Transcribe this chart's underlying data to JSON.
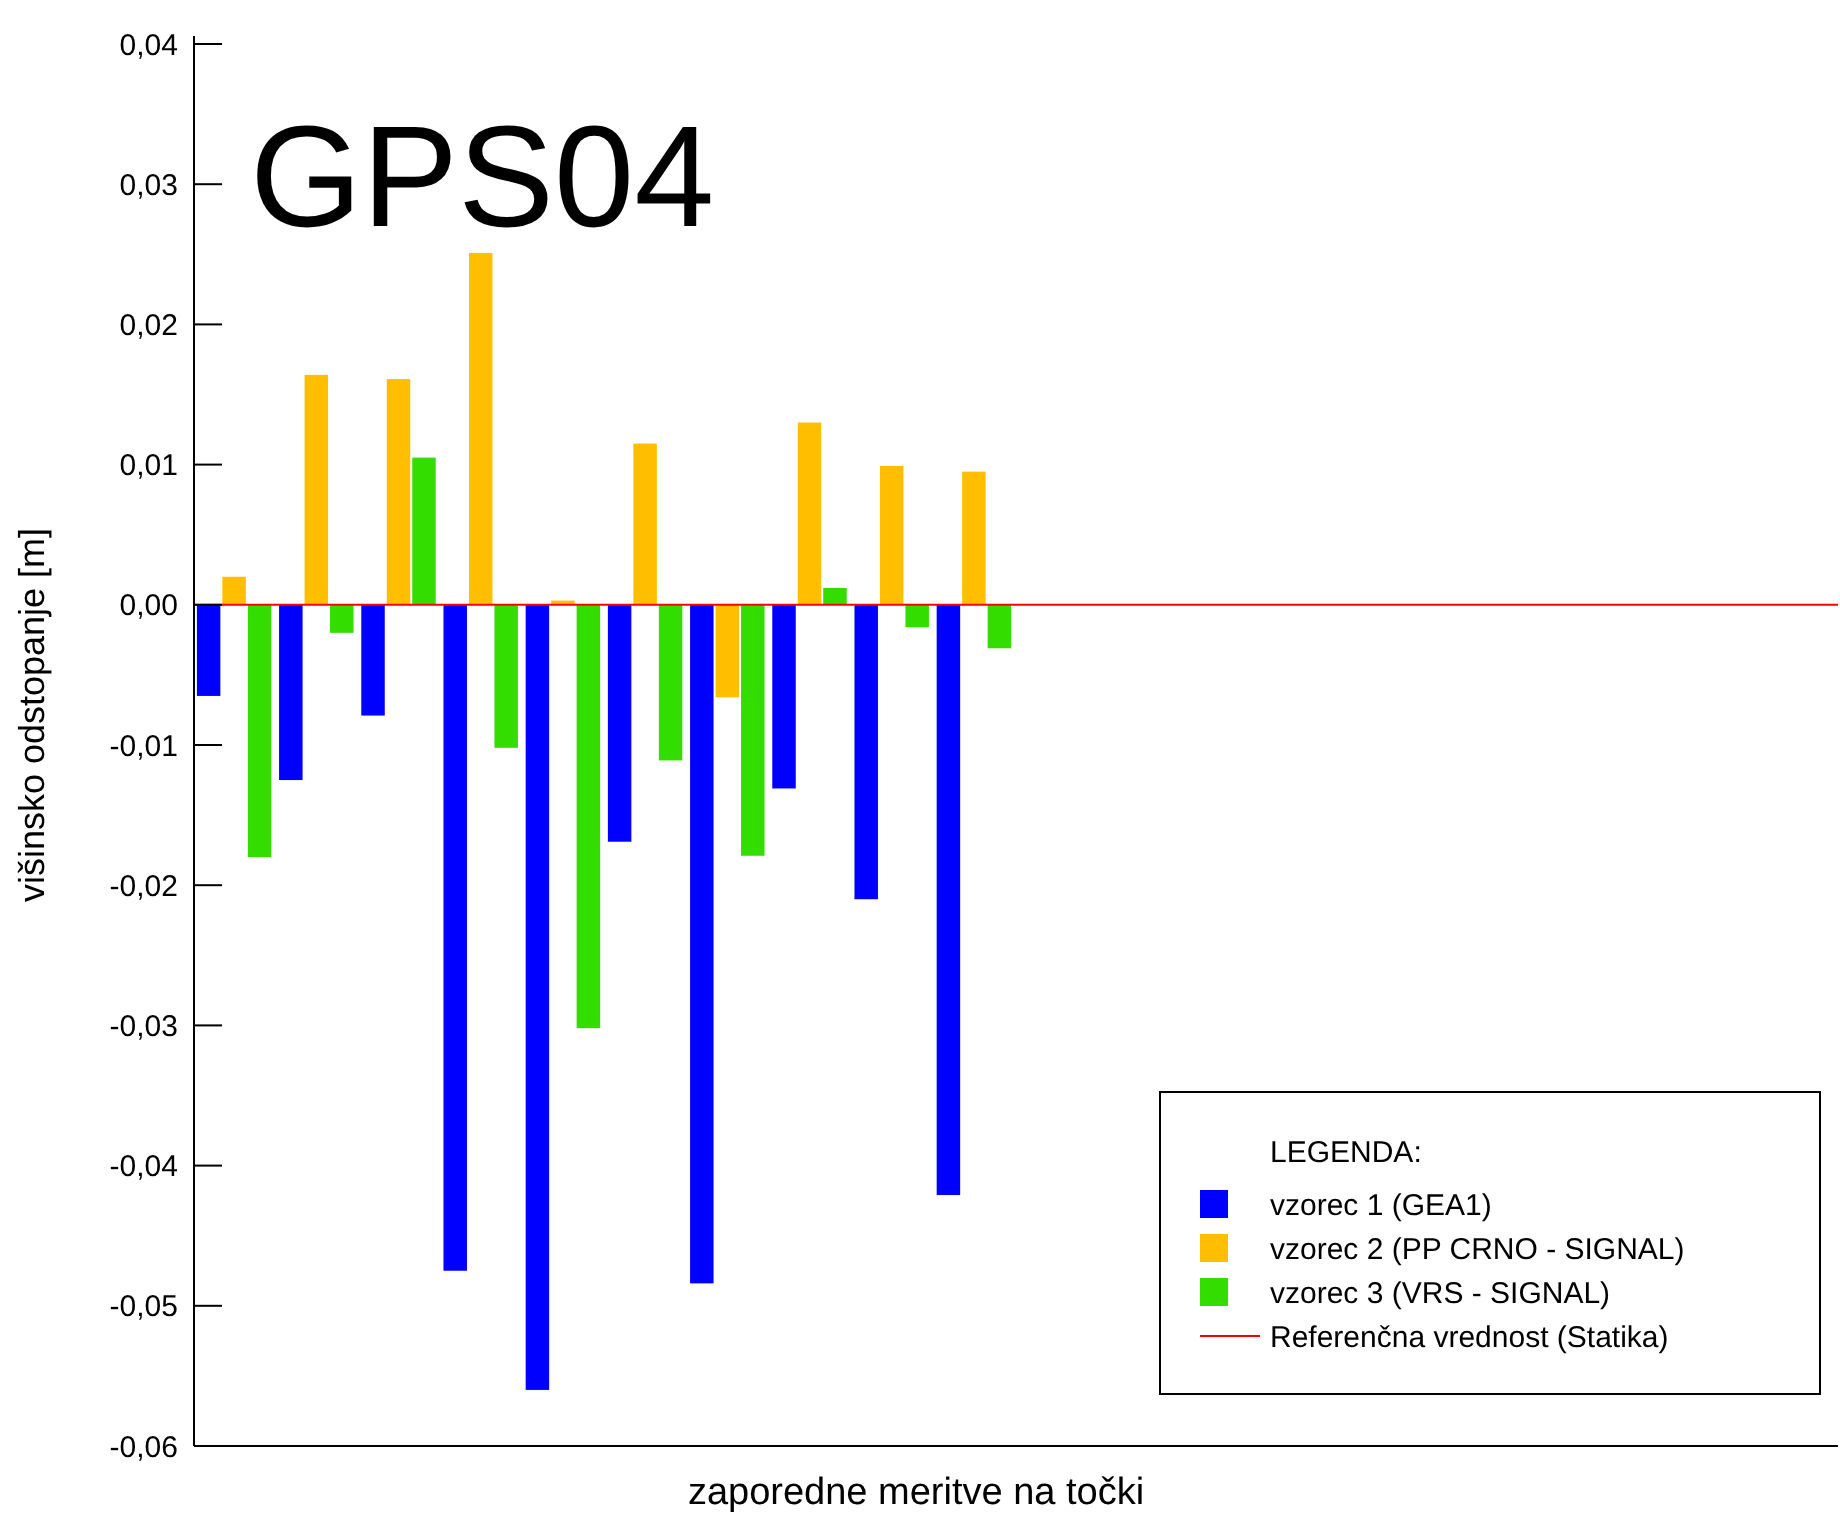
{
  "chart_data": {
    "type": "bar",
    "title": "GPS04",
    "xlabel": "zaporedne meritve na točki",
    "ylabel": "višinsko odstopanje [m]",
    "legend_title": "LEGENDA:",
    "legend": "bottom right",
    "grid": false,
    "categories": [
      null,
      null,
      null,
      null,
      null,
      null,
      null,
      null,
      null,
      null,
      null,
      null,
      null,
      null,
      null,
      null,
      null,
      null,
      null,
      null
    ],
    "series": [
      {
        "name": "vzorec 1 (GEA1)",
        "color": "#0000ff",
        "values": [
          -0.0065,
          -0.0125,
          -0.0079,
          -0.0475,
          -0.056,
          -0.0169,
          -0.0484,
          -0.0131,
          -0.021,
          -0.0421,
          null,
          null,
          null,
          null,
          null,
          null,
          null,
          null,
          null,
          null
        ]
      },
      {
        "name": "vzorec 2 (PP CRNO - SIGNAL)",
        "color": "#ffbf00",
        "values": [
          0.002,
          0.0164,
          0.0161,
          0.0251,
          0.0003,
          0.0115,
          -0.0066,
          0.013,
          0.0099,
          0.0095,
          null,
          null,
          null,
          null,
          null,
          null,
          null,
          null,
          null,
          null
        ]
      },
      {
        "name": "vzorec 3 (VRS - SIGNAL)",
        "color": "#33dd00",
        "values": [
          -0.018,
          -0.002,
          0.0105,
          -0.0102,
          -0.0302,
          -0.0111,
          -0.0179,
          0.0012,
          -0.0016,
          -0.0031,
          null,
          null,
          null,
          null,
          null,
          null,
          null,
          null,
          null,
          null
        ]
      }
    ],
    "ylim": [
      -0.06,
      0.04
    ],
    "yticks": [
      {
        "value": -0.06,
        "label": "-0,06"
      },
      {
        "value": -0.05,
        "label": "-0,05"
      },
      {
        "value": -0.04,
        "label": "-0,04"
      },
      {
        "value": -0.03,
        "label": "-0,03"
      },
      {
        "value": -0.02,
        "label": "-0,02"
      },
      {
        "value": -0.01,
        "label": "-0,01"
      },
      {
        "value": 0,
        "label": "0,00"
      },
      {
        "value": 0.01,
        "label": "0,01"
      },
      {
        "value": 0.02,
        "label": "0,02"
      },
      {
        "value": 0.03,
        "label": "0,03"
      },
      {
        "value": 0.04,
        "label": "0,04"
      }
    ],
    "ref_lines": [
      {
        "axis": "y",
        "value": 0,
        "label": "Referenčna vrednost (Statika)",
        "color": "#ff0000"
      }
    ]
  }
}
